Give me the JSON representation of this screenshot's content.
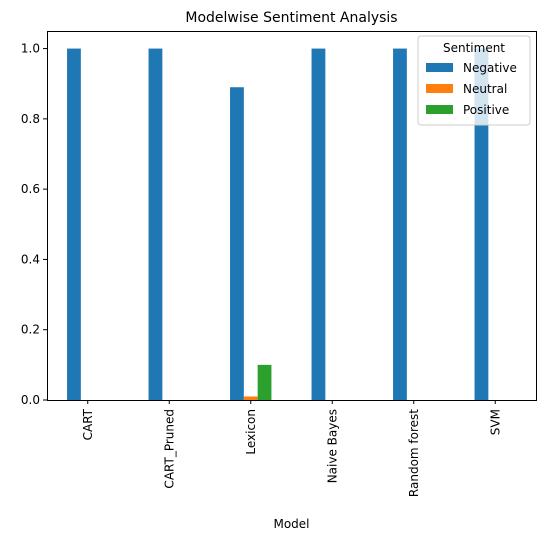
{
  "chart_data": {
    "type": "bar",
    "title": "Modelwise Sentiment Analysis",
    "xlabel": "Model",
    "ylabel": "",
    "ylim": [
      0,
      1.05
    ],
    "yticks": [
      "0.0",
      "0.2",
      "0.4",
      "0.6",
      "0.8",
      "1.0"
    ],
    "categories": [
      "CART",
      "CART_Pruned",
      "Lexicon",
      "Naive Bayes",
      "Random forest",
      "SVM"
    ],
    "series": [
      {
        "name": "Negative",
        "color": "#1f77b4",
        "values": [
          1.0,
          1.0,
          0.89,
          1.0,
          1.0,
          1.0
        ]
      },
      {
        "name": "Neutral",
        "color": "#ff7f0e",
        "values": [
          0.0,
          0.0,
          0.01,
          0.0,
          0.0,
          0.0
        ]
      },
      {
        "name": "Positive",
        "color": "#2ca02c",
        "values": [
          0.0,
          0.0,
          0.1,
          0.0,
          0.0,
          0.0
        ]
      }
    ],
    "legend": {
      "title": "Sentiment",
      "placement": "top-right"
    },
    "grid": false
  }
}
